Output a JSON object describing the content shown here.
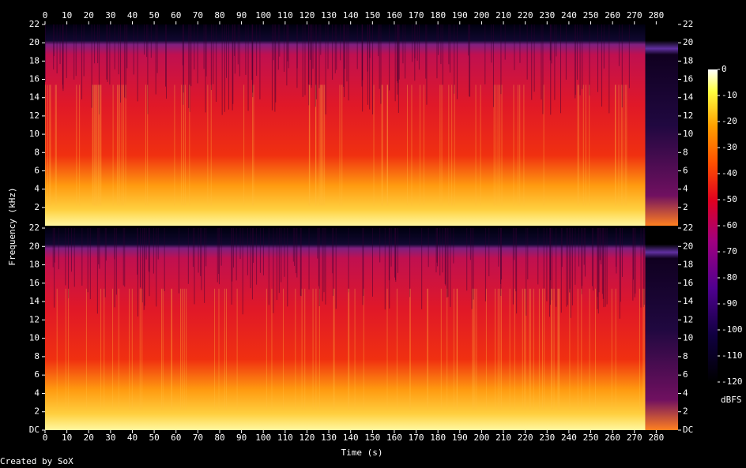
{
  "chart_data": {
    "type": "spectrogram",
    "xlabel": "Time (s)",
    "ylabel": "Frequency (kHz)",
    "xlim": [
      0,
      290
    ],
    "xticks": [
      0,
      10,
      20,
      30,
      40,
      50,
      60,
      70,
      80,
      90,
      100,
      110,
      120,
      130,
      140,
      150,
      160,
      170,
      180,
      190,
      200,
      210,
      220,
      230,
      240,
      250,
      260,
      270,
      280
    ],
    "channels": [
      {
        "ylim": [
          0,
          22
        ],
        "yticks": [
          2,
          4,
          6,
          8,
          10,
          12,
          14,
          16,
          18,
          20,
          22
        ]
      },
      {
        "ylim": [
          0,
          22
        ],
        "yticks": [
          {
            "value": 0,
            "label": "DC"
          },
          2,
          4,
          6,
          8,
          10,
          12,
          14,
          16,
          18,
          20,
          22
        ]
      }
    ],
    "colorbar": {
      "label": "dBFS",
      "lim": [
        -120,
        0
      ],
      "ticks": [
        0,
        -10,
        -20,
        -30,
        -40,
        -50,
        -60,
        -70,
        -80,
        -90,
        -100,
        -110,
        -120
      ]
    },
    "footer": "Created by SoX"
  }
}
